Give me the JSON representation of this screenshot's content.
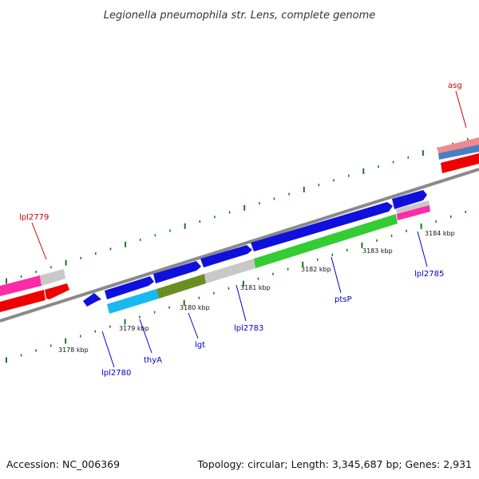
{
  "title": "Legionella pneumophila str. Lens, complete genome",
  "footer": {
    "accession": "Accession: NC_006369",
    "topology": "Topology: circular; Length: 3,345,687 bp; Genes: 2,931"
  },
  "colors": {
    "backbone": "#8a8a8a",
    "tick": "#1a7a1a",
    "blue_gene": "#1010dd",
    "red_gene": "#ee0000",
    "label_blue": "#0000cc",
    "label_red": "#cc0000"
  },
  "scale_ticks": [
    "3178 kbp",
    "3179 kbp",
    "3180 kbp",
    "3181 kbp",
    "3182 kbp",
    "3183 kbp",
    "3184 kbp"
  ],
  "gene_labels": [
    {
      "name": "lpl2779",
      "color": "red"
    },
    {
      "name": "asg",
      "color": "red"
    },
    {
      "name": "lpl2780",
      "color": "blue"
    },
    {
      "name": "thyA",
      "color": "blue"
    },
    {
      "name": "lgt",
      "color": "blue"
    },
    {
      "name": "lpl2783",
      "color": "blue"
    },
    {
      "name": "ptsP",
      "color": "blue"
    },
    {
      "name": "lpl2785",
      "color": "blue"
    }
  ]
}
